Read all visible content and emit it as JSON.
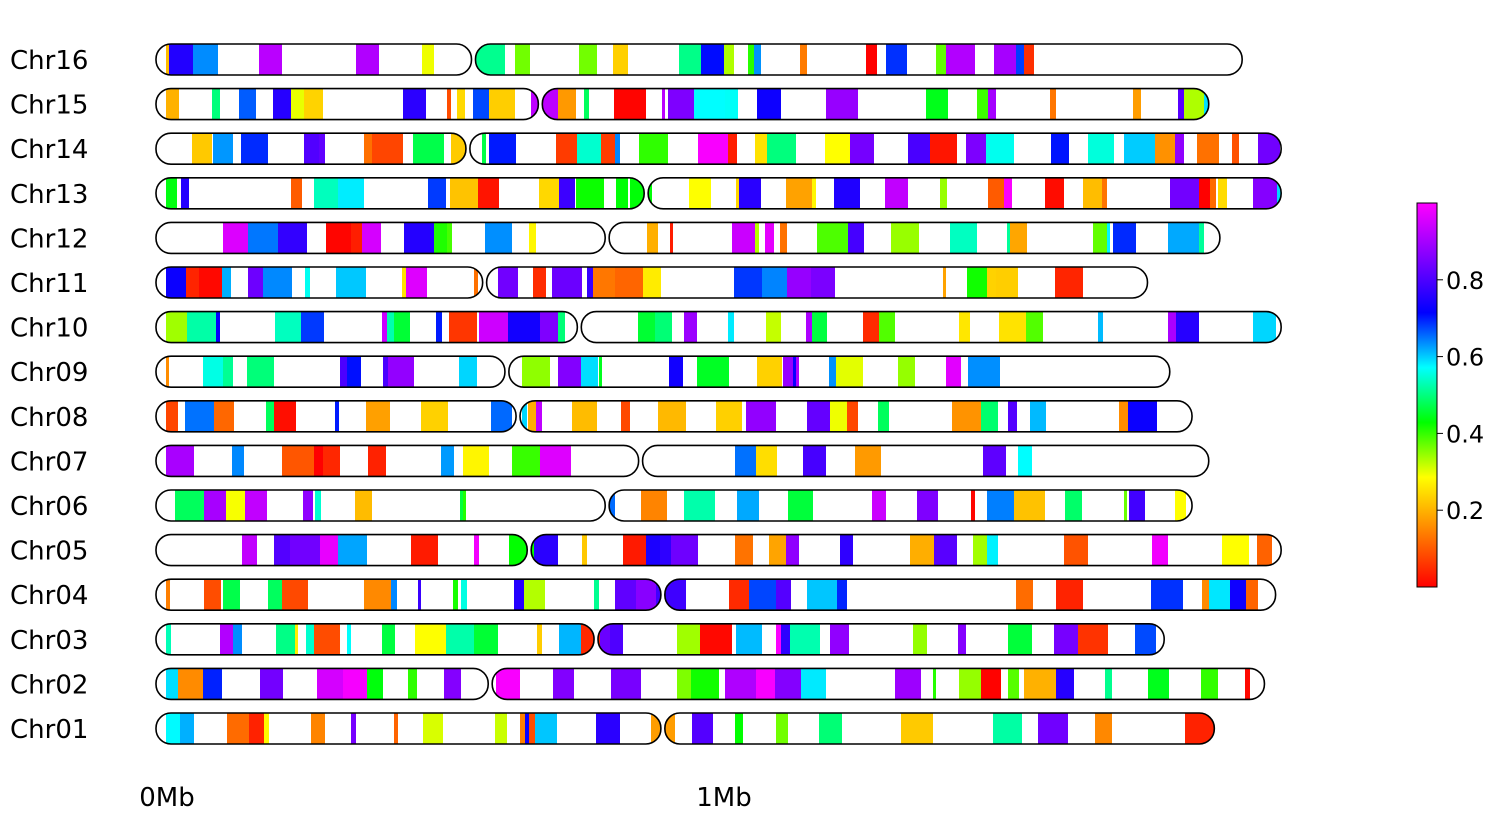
{
  "chart_data": {
    "type": "heatmap",
    "chromosomes": [
      "Chr16",
      "Chr15",
      "Chr14",
      "Chr13",
      "Chr12",
      "Chr11",
      "Chr10",
      "Chr09",
      "Chr08",
      "Chr07",
      "Chr06",
      "Chr05",
      "Chr04",
      "Chr03",
      "Chr02",
      "Chr01"
    ],
    "chromosome_length_mb": [
      1.95,
      1.89,
      2.02,
      2.02,
      1.91,
      1.78,
      2.02,
      1.82,
      1.86,
      1.89,
      1.86,
      2.02,
      2.01,
      1.81,
      1.99,
      1.9
    ],
    "centromere_mb": [
      0.57,
      0.69,
      0.56,
      0.88,
      0.81,
      0.59,
      0.76,
      0.63,
      0.65,
      0.87,
      0.81,
      0.67,
      0.91,
      0.79,
      0.6,
      0.91
    ],
    "x_ticks": [
      {
        "value": 0,
        "label": "0Mb"
      },
      {
        "value": 1,
        "label": "1Mb"
      }
    ],
    "colormap": "gist_rainbow",
    "colorbar": {
      "min": 0.0,
      "max": 1.0,
      "ticks": [
        "0.2",
        "0.4",
        "0.6",
        "0.8"
      ],
      "position": "right"
    },
    "segment_density_seed": 7
  },
  "colors": {
    "outline": "#000000",
    "colormap_stops": [
      "#ff0000",
      "#ff8000",
      "#ffff00",
      "#00ff00",
      "#00ffff",
      "#0000ff",
      "#8000ff",
      "#ff00ff"
    ]
  }
}
